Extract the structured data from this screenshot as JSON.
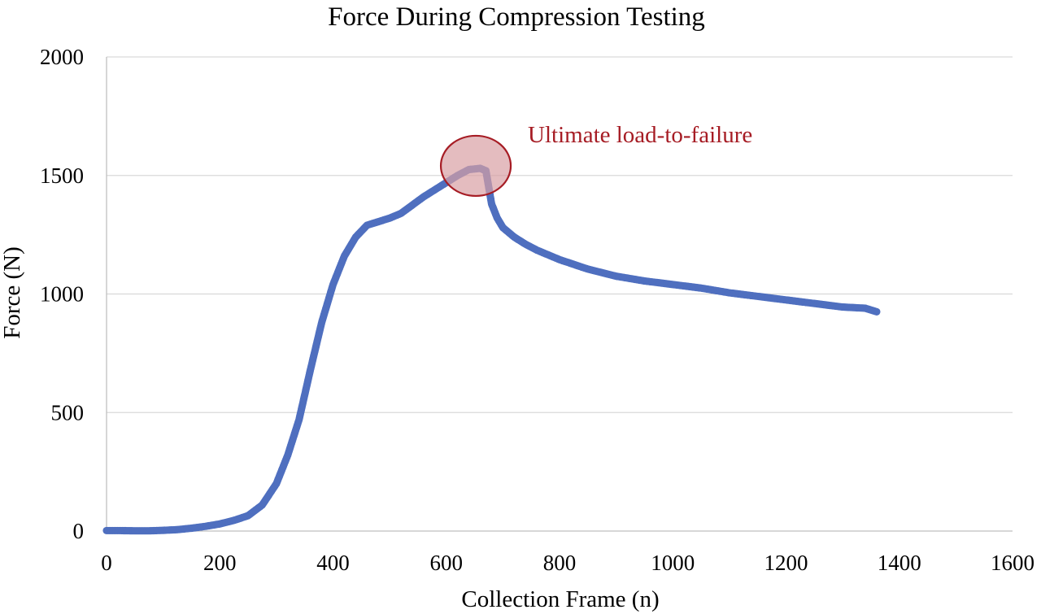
{
  "chart_data": {
    "type": "scatter",
    "title": "Force During Compression Testing",
    "xlabel": "Collection Frame (n)",
    "ylabel": "Force (N)",
    "xlim": [
      0,
      1600
    ],
    "ylim": [
      0,
      2000
    ],
    "x_ticks": [
      0,
      200,
      400,
      600,
      800,
      1000,
      1200,
      1400,
      1600
    ],
    "y_ticks": [
      0,
      500,
      1000,
      1500,
      2000
    ],
    "grid": "horizontal",
    "legend": "none",
    "series": [
      {
        "color": "#4f6fbf",
        "x": [
          0,
          25,
          50,
          75,
          100,
          125,
          150,
          175,
          200,
          225,
          250,
          275,
          300,
          320,
          340,
          360,
          380,
          400,
          420,
          440,
          460,
          480,
          500,
          520,
          540,
          560,
          580,
          600,
          620,
          640,
          660,
          670,
          675,
          680,
          690,
          700,
          720,
          740,
          760,
          780,
          800,
          850,
          900,
          950,
          1000,
          1050,
          1100,
          1150,
          1200,
          1250,
          1300,
          1340,
          1360
        ],
        "y": [
          2,
          2,
          1,
          1,
          3,
          6,
          12,
          20,
          30,
          45,
          65,
          110,
          200,
          320,
          470,
          680,
          880,
          1040,
          1160,
          1240,
          1290,
          1305,
          1320,
          1340,
          1375,
          1410,
          1440,
          1470,
          1500,
          1525,
          1530,
          1520,
          1450,
          1380,
          1320,
          1280,
          1240,
          1210,
          1185,
          1165,
          1145,
          1105,
          1075,
          1055,
          1040,
          1025,
          1005,
          990,
          975,
          960,
          945,
          940,
          925
        ]
      }
    ],
    "annotations": [
      {
        "text": "Ultimate load-to-failure",
        "x": 655,
        "y": 1520,
        "color": "#a61c24",
        "circle_fill": "#d9a0a4",
        "circle_stroke": "#a61c24"
      }
    ]
  }
}
